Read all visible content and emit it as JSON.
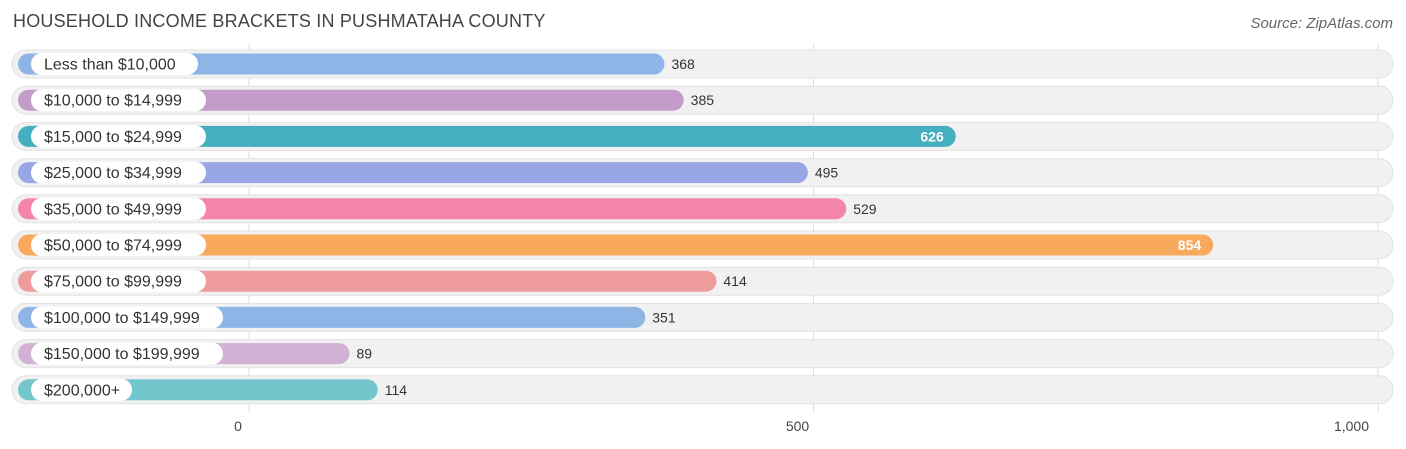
{
  "header": {
    "title": "HOUSEHOLD INCOME BRACKETS IN PUSHMATAHA COUNTY",
    "source": "Source: ZipAtlas.com"
  },
  "chart_data": {
    "type": "bar",
    "orientation": "horizontal",
    "title": "HOUSEHOLD INCOME BRACKETS IN PUSHMATAHA COUNTY",
    "categories": [
      "Less than $10,000",
      "$10,000 to $14,999",
      "$15,000 to $24,999",
      "$25,000 to $34,999",
      "$35,000 to $49,999",
      "$50,000 to $74,999",
      "$75,000 to $99,999",
      "$100,000 to $149,999",
      "$150,000 to $199,999",
      "$200,000+"
    ],
    "values": [
      368,
      385,
      626,
      495,
      529,
      854,
      414,
      351,
      89,
      114
    ],
    "value_labels": [
      "368",
      "385",
      "626",
      "495",
      "529",
      "854",
      "414",
      "351",
      "89",
      "114"
    ],
    "colors": [
      "#8fb4e6",
      "#c39cc9",
      "#45aebf",
      "#98a6e5",
      "#f484a8",
      "#f8a95c",
      "#ee9b9b",
      "#8fb4e6",
      "#d1b1d4",
      "#73c6cc"
    ],
    "xlim": [
      0,
      1000
    ],
    "xticks": [
      0,
      500,
      1000
    ],
    "xtick_labels": [
      "0",
      "500",
      "1,000"
    ],
    "grid": true,
    "legend": "none"
  }
}
